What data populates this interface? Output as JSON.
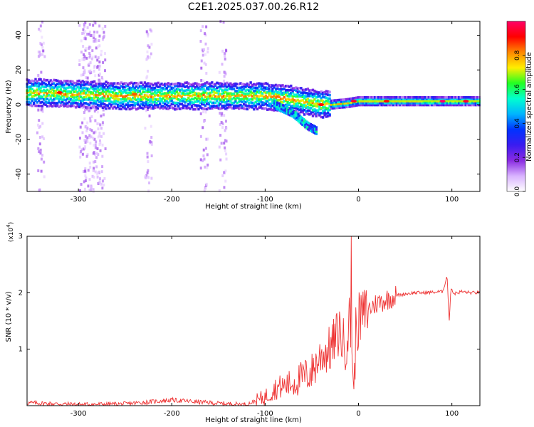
{
  "title": "C2E1.2025.037.00.26.R12",
  "colors": {
    "axis": "#000000",
    "snr_line": "#ee3333",
    "colormap": [
      "#ffffff",
      "#d9b3ff",
      "#8a2be2",
      "#3a1cf0",
      "#0033ff",
      "#00b4ff",
      "#00ffd0",
      "#22ff22",
      "#ffee00",
      "#ff8800",
      "#ff0000",
      "#ff0066"
    ]
  },
  "chart_data": [
    {
      "type": "heatmap",
      "xlabel": "Height of straight line (km)",
      "ylabel": "Frequency (Hz)",
      "xlim": [
        -355,
        130
      ],
      "ylim": [
        -50,
        48
      ],
      "xticks": [
        -300,
        -200,
        -100,
        0,
        100
      ],
      "yticks": [
        -40,
        -20,
        0,
        20,
        40
      ],
      "colorbar": {
        "label": "Normalized spectral amplitude",
        "range": [
          0,
          1
        ],
        "ticks": [
          0.0,
          0.2,
          0.4,
          0.6,
          0.8
        ]
      },
      "ridge": [
        {
          "x": -350,
          "y": 7
        },
        {
          "x": -300,
          "y": 6
        },
        {
          "x": -250,
          "y": 5
        },
        {
          "x": -200,
          "y": 5
        },
        {
          "x": -150,
          "y": 5
        },
        {
          "x": -100,
          "y": 5
        },
        {
          "x": -70,
          "y": 3
        },
        {
          "x": -50,
          "y": 1
        },
        {
          "x": -30,
          "y": 0
        },
        {
          "x": -10,
          "y": 1
        },
        {
          "x": 0,
          "y": 2
        },
        {
          "x": 50,
          "y": 2
        },
        {
          "x": 100,
          "y": 2
        },
        {
          "x": 130,
          "y": 2
        }
      ],
      "branch": [
        {
          "x": -90,
          "y": 0
        },
        {
          "x": -70,
          "y": -5
        },
        {
          "x": -55,
          "y": -12
        },
        {
          "x": -45,
          "y": -15
        }
      ],
      "high_amplitude_spots": [
        {
          "x": -320,
          "y": 7,
          "amplitude": 0.9
        },
        {
          "x": -240,
          "y": 6,
          "amplitude": 0.85
        },
        {
          "x": -40,
          "y": 0,
          "amplitude": 0.9
        },
        {
          "x": -5,
          "y": 2,
          "amplitude": 0.95
        },
        {
          "x": 30,
          "y": 2,
          "amplitude": 0.9
        },
        {
          "x": 90,
          "y": 2,
          "amplitude": 1.0
        },
        {
          "x": 115,
          "y": 2,
          "amplitude": 0.95
        }
      ],
      "noise_columns_x": [
        -340,
        -295,
        -290,
        -285,
        -280,
        -275,
        -225,
        -165,
        -145
      ]
    },
    {
      "type": "line",
      "xlabel": "Height of straight line (km)",
      "ylabel": "SNR (10 * v/v)",
      "y_multiplier": "(x10",
      "y_multiplier_exp": "4",
      "y_multiplier_close": ")",
      "xlim": [
        -355,
        130
      ],
      "ylim": [
        0,
        3
      ],
      "xticks": [
        -300,
        -200,
        -100,
        0,
        100
      ],
      "yticks": [
        1,
        2,
        3
      ],
      "series": [
        {
          "x": [
            -355,
            -300,
            -250,
            -200,
            -150,
            -120,
            -100,
            -90,
            -80,
            -70,
            -60,
            -50,
            -40,
            -30,
            -20,
            -15,
            -10,
            -7,
            -5,
            -3,
            0,
            10,
            20,
            30,
            40,
            50,
            60,
            70,
            80,
            90,
            95,
            97,
            99,
            102,
            110,
            120,
            130
          ],
          "y": [
            0.05,
            0.02,
            0.03,
            0.1,
            0.04,
            0.02,
            0.15,
            0.3,
            0.35,
            0.4,
            0.5,
            0.6,
            0.9,
            1.0,
            1.35,
            1.0,
            1.5,
            1.2,
            0.05,
            1.3,
            1.5,
            1.7,
            1.82,
            1.88,
            1.95,
            1.98,
            2.0,
            2.0,
            2.01,
            2.02,
            2.3,
            1.45,
            2.1,
            1.98,
            2.02,
            2.0,
            2.0
          ],
          "peak": {
            "x": -8,
            "y": 3.0
          }
        }
      ]
    }
  ]
}
